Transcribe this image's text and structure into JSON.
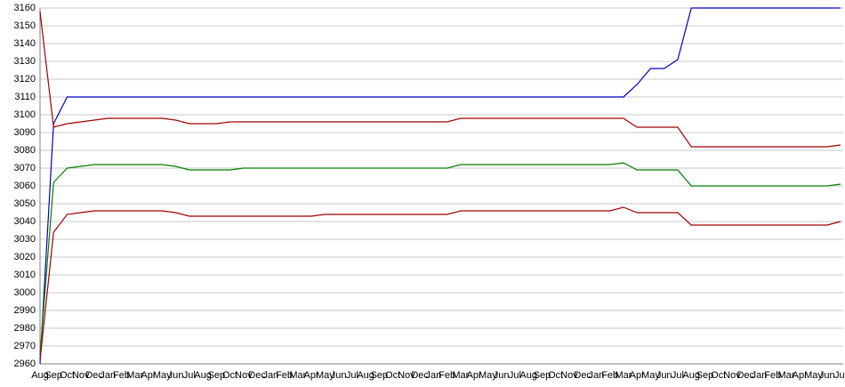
{
  "chart_data": {
    "type": "line",
    "categories": [
      "Aug",
      "Sep",
      "Oct",
      "Nov",
      "Dec",
      "Jan",
      "Feb",
      "Mar",
      "Apr",
      "May",
      "Jun",
      "Jul",
      "Aug",
      "Sep",
      "Oct",
      "Nov",
      "Dec",
      "Jan",
      "Feb",
      "Mar",
      "Apr",
      "May",
      "Jun",
      "Jul",
      "Aug",
      "Sep",
      "Oct",
      "Nov",
      "Dec",
      "Jan",
      "Feb",
      "Mar",
      "Apr",
      "May",
      "Jun",
      "Jul",
      "Aug",
      "Sep",
      "Oct",
      "Nov",
      "Dec",
      "Jan",
      "Feb",
      "Mar",
      "Apr",
      "May",
      "Jun",
      "Jul",
      "Aug",
      "Sep",
      "Oct",
      "Nov",
      "Dec",
      "Jan",
      "Feb",
      "Mar",
      "Apr",
      "May",
      "Jun",
      "Jul"
    ],
    "series": [
      {
        "color": "#0000c0",
        "values": [
          2960,
          3095,
          3110,
          3110,
          3110,
          3110,
          3110,
          3110,
          3110,
          3110,
          3110,
          3110,
          3110,
          3110,
          3110,
          3110,
          3110,
          3110,
          3110,
          3110,
          3110,
          3110,
          3110,
          3110,
          3110,
          3110,
          3110,
          3110,
          3110,
          3110,
          3110,
          3110,
          3110,
          3110,
          3110,
          3110,
          3110,
          3110,
          3110,
          3110,
          3110,
          3110,
          3110,
          3110,
          3117,
          3126,
          3126,
          3131,
          3160,
          3160,
          3160,
          3160,
          3160,
          3160,
          3160,
          3160,
          3160,
          3160,
          3160,
          3160
        ]
      },
      {
        "color": "#a00000",
        "values": [
          3158,
          3093,
          3095,
          3096,
          3097,
          3098,
          3098,
          3098,
          3098,
          3098,
          3097,
          3095,
          3095,
          3095,
          3096,
          3096,
          3096,
          3096,
          3096,
          3096,
          3096,
          3096,
          3096,
          3096,
          3096,
          3096,
          3096,
          3096,
          3096,
          3096,
          3096,
          3098,
          3098,
          3098,
          3098,
          3098,
          3098,
          3098,
          3098,
          3098,
          3098,
          3098,
          3098,
          3098,
          3093,
          3093,
          3093,
          3093,
          3082,
          3082,
          3082,
          3082,
          3082,
          3082,
          3082,
          3082,
          3082,
          3082,
          3082,
          3083
        ]
      },
      {
        "color": "#008000",
        "values": [
          2965,
          3062,
          3070,
          3071,
          3072,
          3072,
          3072,
          3072,
          3072,
          3072,
          3071,
          3069,
          3069,
          3069,
          3069,
          3070,
          3070,
          3070,
          3070,
          3070,
          3070,
          3070,
          3070,
          3070,
          3070,
          3070,
          3070,
          3070,
          3070,
          3070,
          3070,
          3072,
          3072,
          3072,
          3072,
          3072,
          3072,
          3072,
          3072,
          3072,
          3072,
          3072,
          3072,
          3073,
          3069,
          3069,
          3069,
          3069,
          3060,
          3060,
          3060,
          3060,
          3060,
          3060,
          3060,
          3060,
          3060,
          3060,
          3060,
          3061
        ]
      },
      {
        "color": "#a00000",
        "values": [
          2962,
          3034,
          3044,
          3045,
          3046,
          3046,
          3046,
          3046,
          3046,
          3046,
          3045,
          3043,
          3043,
          3043,
          3043,
          3043,
          3043,
          3043,
          3043,
          3043,
          3043,
          3044,
          3044,
          3044,
          3044,
          3044,
          3044,
          3044,
          3044,
          3044,
          3044,
          3046,
          3046,
          3046,
          3046,
          3046,
          3046,
          3046,
          3046,
          3046,
          3046,
          3046,
          3046,
          3048,
          3045,
          3045,
          3045,
          3045,
          3038,
          3038,
          3038,
          3038,
          3038,
          3038,
          3038,
          3038,
          3038,
          3038,
          3038,
          3040
        ]
      }
    ],
    "ylim": [
      2960,
      3160
    ],
    "yticks": [
      2960,
      2970,
      2980,
      2990,
      3000,
      3010,
      3020,
      3030,
      3040,
      3050,
      3060,
      3070,
      3080,
      3090,
      3100,
      3110,
      3120,
      3130,
      3140,
      3150,
      3160
    ],
    "grid": true
  }
}
